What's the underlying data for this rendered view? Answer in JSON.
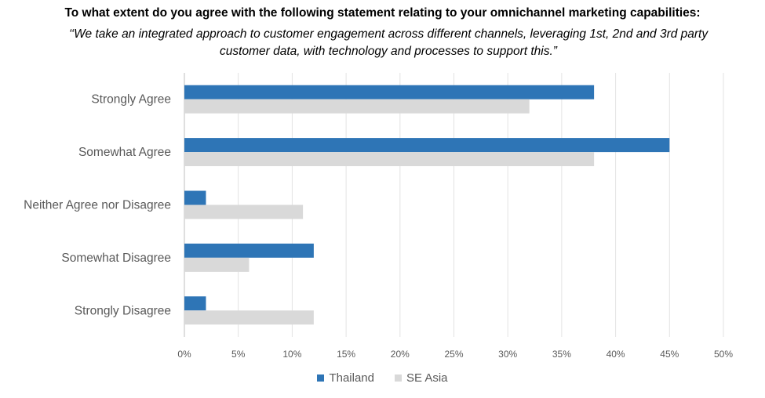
{
  "title": "To what extent do you agree with the following statement relating to your omnichannel marketing capabilities:",
  "subtitle": "‘‘We take an integrated approach to customer engagement across different channels, leveraging 1st, 2nd and 3rd party customer data, with technology and processes to support this.”",
  "chart_data": {
    "type": "bar",
    "orientation": "horizontal",
    "categories": [
      "Strongly Agree",
      "Somewhat Agree",
      "Neither Agree nor Disagree",
      "Somewhat Disagree",
      "Strongly Disagree"
    ],
    "series": [
      {
        "name": "Thailand",
        "color": "#2E75B6",
        "values": [
          38,
          45,
          2,
          12,
          2
        ]
      },
      {
        "name": "SE Asia",
        "color": "#D9D9D9",
        "values": [
          32,
          38,
          11,
          6,
          12
        ]
      }
    ],
    "xlim": [
      0,
      50
    ],
    "xticks": [
      "0%",
      "5%",
      "10%",
      "15%",
      "20%",
      "25%",
      "30%",
      "35%",
      "40%",
      "45%",
      "50%"
    ],
    "grid": true,
    "legend": "bottom"
  }
}
